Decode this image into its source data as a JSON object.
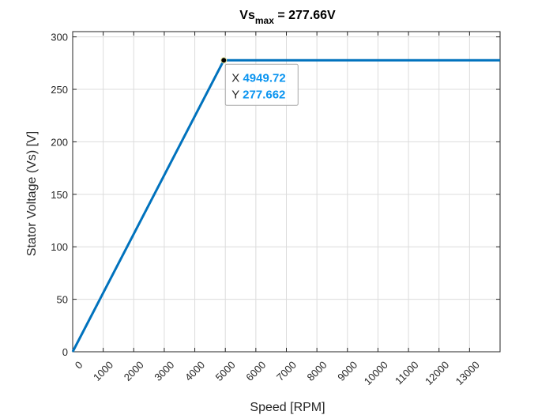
{
  "chart_data": {
    "type": "line",
    "title": {
      "main": "Vs",
      "sub": "max",
      "rest": " = 277.66V"
    },
    "xlabel": "Speed [RPM]",
    "ylabel": "Stator Voltage (Vs) [V]",
    "xlim": [
      0,
      14000
    ],
    "ylim": [
      0,
      305
    ],
    "xticks": [
      0,
      1000,
      2000,
      3000,
      4000,
      5000,
      6000,
      7000,
      8000,
      9000,
      10000,
      11000,
      12000,
      13000
    ],
    "yticks": [
      0,
      50,
      100,
      150,
      200,
      250,
      300
    ],
    "grid": true,
    "series": [
      {
        "color": "#0072BD",
        "x": [
          0,
          4949.72,
          14000
        ],
        "y": [
          0,
          277.662,
          277.662
        ]
      }
    ],
    "datatip": {
      "x": 4949.72,
      "y": 277.662,
      "x_prefix": "X",
      "x_value": "4949.72",
      "y_prefix": "Y",
      "y_value": "277.662",
      "value_color": "#0A94F0"
    }
  }
}
